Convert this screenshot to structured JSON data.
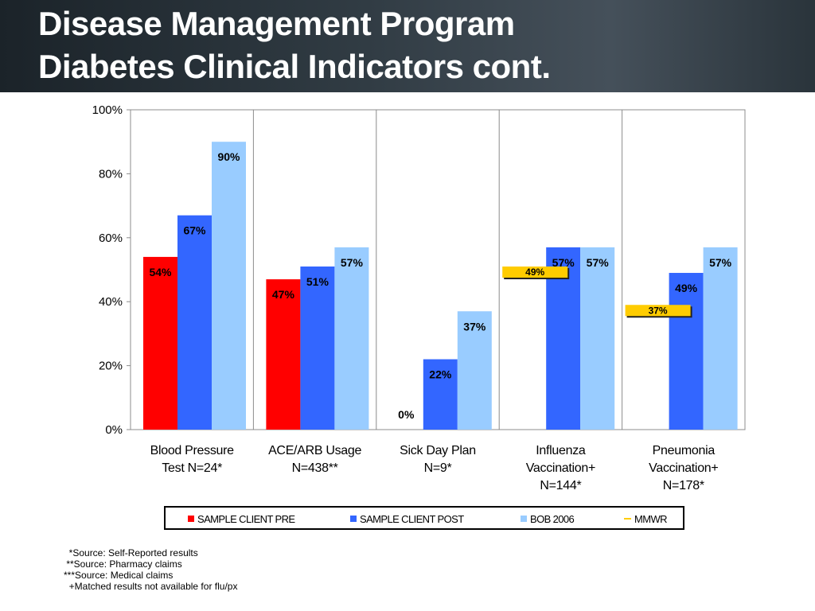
{
  "slide": {
    "title_line1": "Disease Management Program",
    "title_line2": "Diabetes Clinical Indicators cont."
  },
  "chart_data": {
    "type": "bar",
    "title": "",
    "xlabel": "",
    "ylabel": "",
    "ylim": [
      0,
      100
    ],
    "yticks": [
      "0%",
      "20%",
      "40%",
      "60%",
      "80%",
      "100%"
    ],
    "grid": "vertical separators between categories",
    "categories": [
      [
        "Blood Pressure",
        "Test N=24*"
      ],
      [
        "ACE/ARB Usage",
        "N=438**"
      ],
      [
        "Sick Day Plan",
        "N=9*"
      ],
      [
        "Influenza",
        "Vaccination+",
        "N=144*"
      ],
      [
        "Pneumonia",
        "Vaccination+",
        "N=178*"
      ]
    ],
    "series": [
      {
        "name": "SAMPLE CLIENT PRE",
        "color": "#ff0000",
        "values": [
          54,
          47,
          0,
          null,
          null
        ],
        "labels": [
          "54%",
          "47%",
          "0%",
          null,
          null
        ]
      },
      {
        "name": "SAMPLE CLIENT POST",
        "color": "#3366ff",
        "values": [
          67,
          51,
          22,
          57,
          49
        ],
        "labels": [
          "67%",
          "51%",
          "22%",
          "57%",
          "49%"
        ]
      },
      {
        "name": "BOB 2006",
        "color": "#99ccff",
        "values": [
          90,
          57,
          37,
          57,
          57
        ],
        "labels": [
          "90%",
          "57%",
          "37%",
          "57%",
          "57%"
        ]
      }
    ],
    "benchmark": {
      "name": "MMWR",
      "color": "#ffcc00",
      "values": [
        null,
        null,
        null,
        49,
        37
      ],
      "labels": [
        null,
        null,
        null,
        "49%",
        "37%"
      ]
    },
    "legend_position": "bottom"
  },
  "footnotes": [
    "  *Source: Self-Reported results",
    " **Source: Pharmacy claims",
    "***Source: Medical claims",
    "  +Matched results not available for flu/px"
  ]
}
